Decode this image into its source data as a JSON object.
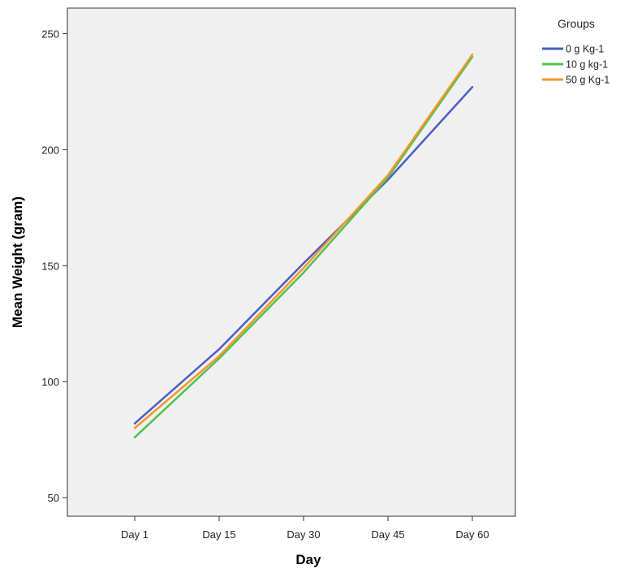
{
  "chart_data": {
    "type": "line",
    "title": "",
    "xlabel": "Day",
    "ylabel": "Mean Weight (gram)",
    "categories": [
      "Day 1",
      "Day 15",
      "Day 30",
      "Day 45",
      "Day 60"
    ],
    "ylim": [
      42,
      261
    ],
    "yticks": [
      50,
      100,
      150,
      200,
      250
    ],
    "grid": false,
    "legend": {
      "title": "Groups",
      "position": "top-right"
    },
    "series": [
      {
        "name": "0 g Kg-1",
        "color": "#4a5ec2",
        "values": [
          82,
          114,
          151,
          187,
          227
        ]
      },
      {
        "name": "10 g kg-1",
        "color": "#4fc34f",
        "values": [
          76,
          110,
          147,
          188,
          240
        ]
      },
      {
        "name": "50 g Kg-1",
        "color": "#f5962a",
        "values": [
          80,
          111,
          149,
          189,
          241
        ]
      }
    ]
  }
}
